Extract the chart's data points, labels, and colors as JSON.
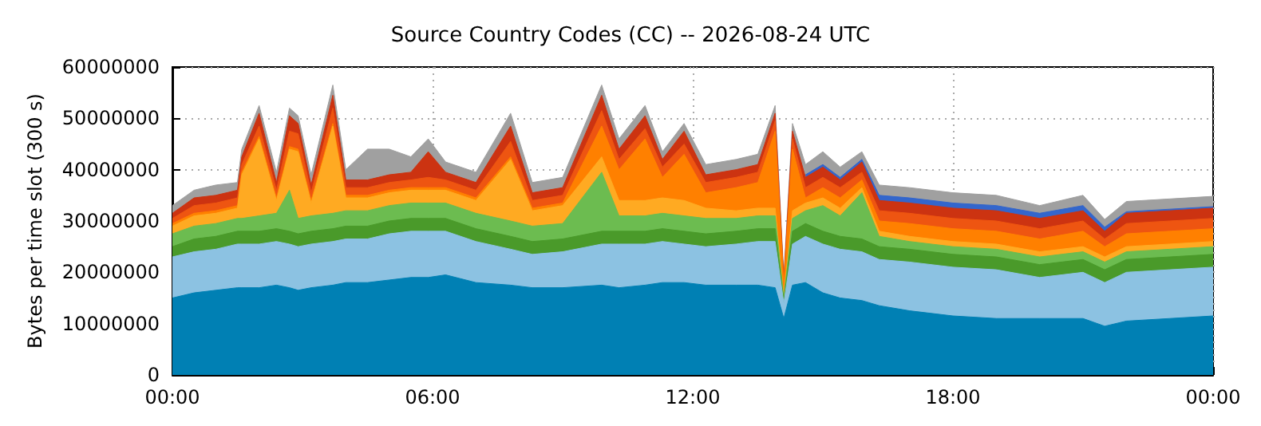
{
  "chart_data": {
    "type": "area",
    "title": "Source Country Codes (CC) -- 2026-08-24 UTC",
    "ylabel": "Bytes per time slot (300 s)",
    "stacked": true,
    "grid": true,
    "marker": "none",
    "x": [
      0,
      0.5,
      1,
      1.5,
      1.6,
      2,
      2.4,
      2.7,
      2.9,
      3.2,
      3.7,
      4,
      4.5,
      5,
      5.5,
      5.9,
      6.3,
      7,
      7.8,
      8.3,
      9,
      9.9,
      10.3,
      10.9,
      11.3,
      11.8,
      12.3,
      13,
      13.5,
      13.9,
      14.1,
      14.3,
      14.6,
      15,
      15.4,
      15.9,
      16.3,
      17,
      18,
      19,
      20,
      21,
      21.5,
      22,
      23,
      24
    ],
    "series": [
      {
        "color": "#0080b4",
        "values": [
          15000000,
          16000000,
          16500000,
          17000000,
          17000000,
          17000000,
          17500000,
          17000000,
          16500000,
          17000000,
          17500000,
          18000000,
          18000000,
          18500000,
          19000000,
          19000000,
          19500000,
          18000000,
          17500000,
          17000000,
          17000000,
          17500000,
          17000000,
          17500000,
          18000000,
          18000000,
          17500000,
          17500000,
          17500000,
          17000000,
          11000000,
          17500000,
          18000000,
          16000000,
          15000000,
          14500000,
          13500000,
          12500000,
          11500000,
          11000000,
          11000000,
          11000000,
          9500000,
          10500000,
          11000000,
          11500000
        ]
      },
      {
        "color": "#8cc2e2",
        "values": [
          8000000,
          8000000,
          8000000,
          8500000,
          8500000,
          8500000,
          8500000,
          8500000,
          8500000,
          8500000,
          8500000,
          8500000,
          8500000,
          9000000,
          9000000,
          9000000,
          8500000,
          8000000,
          7000000,
          6500000,
          7000000,
          8000000,
          8500000,
          8000000,
          8000000,
          7500000,
          7500000,
          8000000,
          8500000,
          9000000,
          3000000,
          8000000,
          9000000,
          9500000,
          9500000,
          9500000,
          9000000,
          9500000,
          9500000,
          9500000,
          8000000,
          9000000,
          8500000,
          9500000,
          9500000,
          9500000
        ]
      },
      {
        "color": "#4a9a2a",
        "values": [
          2000000,
          2500000,
          2500000,
          2500000,
          2500000,
          2500000,
          2500000,
          2500000,
          2500000,
          2500000,
          2500000,
          2500000,
          2500000,
          2500000,
          2500000,
          2500000,
          2500000,
          2500000,
          2500000,
          2500000,
          2500000,
          2500000,
          2500000,
          2500000,
          2500000,
          2500000,
          2500000,
          2500000,
          2500000,
          2500000,
          500000,
          2500000,
          2500000,
          2500000,
          2500000,
          2500000,
          2500000,
          2500000,
          2500000,
          2500000,
          2500000,
          2500000,
          2500000,
          2500000,
          2500000,
          2500000
        ]
      },
      {
        "color": "#6cbc50",
        "values": [
          2500000,
          2500000,
          2500000,
          2500000,
          2500000,
          3000000,
          3000000,
          8000000,
          3000000,
          3000000,
          3000000,
          3000000,
          3000000,
          3000000,
          3000000,
          3000000,
          3000000,
          3000000,
          3000000,
          3000000,
          3000000,
          11500000,
          3000000,
          3000000,
          3000000,
          3000000,
          3000000,
          2500000,
          2500000,
          2500000,
          500000,
          2500000,
          2500000,
          5000000,
          4000000,
          9000000,
          2000000,
          1500000,
          1500000,
          1500000,
          1500000,
          1500000,
          1500000,
          1500000,
          1500000,
          1500000
        ]
      },
      {
        "color": "#ffaa22",
        "values": [
          1500000,
          2000000,
          2000000,
          2000000,
          8500000,
          15000000,
          2500000,
          8000000,
          13000000,
          2500000,
          17000000,
          2500000,
          2500000,
          2500000,
          2500000,
          2500000,
          2500000,
          2500000,
          12000000,
          3000000,
          3500000,
          3000000,
          3000000,
          3000000,
          3000000,
          3000000,
          2000000,
          1500000,
          1500000,
          1500000,
          500000,
          1500000,
          1500000,
          1500000,
          1500000,
          1000000,
          1000000,
          1000000,
          1000000,
          1000000,
          1000000,
          1000000,
          1000000,
          1000000,
          1000000,
          1000000
        ]
      },
      {
        "color": "#ff8000",
        "values": [
          500000,
          500000,
          500000,
          500000,
          500000,
          500000,
          500000,
          500000,
          500000,
          500000,
          500000,
          500000,
          500000,
          500000,
          500000,
          500000,
          500000,
          500000,
          500000,
          500000,
          500000,
          6000000,
          6000000,
          12000000,
          4000000,
          9000000,
          3000000,
          4500000,
          5000000,
          15000000,
          2000000,
          12000000,
          1000000,
          2000000,
          2000000,
          1500000,
          2000000,
          2500000,
          2500000,
          2500000,
          2500000,
          3000000,
          2000000,
          2500000,
          2500000,
          2500000
        ]
      },
      {
        "color": "#ee5511",
        "values": [
          1000000,
          1500000,
          1500000,
          1500000,
          1500000,
          2000000,
          1500000,
          3000000,
          3000000,
          1500000,
          3000000,
          1500000,
          1500000,
          1500000,
          1500000,
          2000000,
          1500000,
          1500000,
          3000000,
          1500000,
          1500000,
          3000000,
          2000000,
          2000000,
          2000000,
          2000000,
          2000000,
          2000000,
          2000000,
          2000000,
          500000,
          2000000,
          2000000,
          2000000,
          2000000,
          1500000,
          2000000,
          2000000,
          2000000,
          2000000,
          2000000,
          2000000,
          1500000,
          2000000,
          2000000,
          2000000
        ]
      },
      {
        "color": "#cc3311",
        "values": [
          1000000,
          1500000,
          1500000,
          1500000,
          1500000,
          2500000,
          1500000,
          3000000,
          2000000,
          1500000,
          2500000,
          1500000,
          1500000,
          1500000,
          1500000,
          5000000,
          1500000,
          1500000,
          3000000,
          1500000,
          1500000,
          3000000,
          2000000,
          2500000,
          1500000,
          2500000,
          1500000,
          1500000,
          1500000,
          1500000,
          500000,
          1500000,
          2000000,
          2000000,
          1500000,
          2000000,
          2000000,
          2000000,
          2000000,
          2000000,
          2000000,
          2000000,
          1500000,
          2000000,
          2000000,
          2000000
        ]
      },
      {
        "color": "#3366cc",
        "values": [
          null,
          null,
          null,
          null,
          null,
          null,
          null,
          null,
          null,
          null,
          null,
          null,
          null,
          null,
          null,
          null,
          null,
          null,
          null,
          null,
          null,
          null,
          null,
          null,
          null,
          null,
          null,
          null,
          null,
          null,
          null,
          null,
          500000,
          500000,
          500000,
          500000,
          1000000,
          1000000,
          1000000,
          1000000,
          1000000,
          1000000,
          800000,
          300000,
          300000,
          300000
        ]
      },
      {
        "color": "#a0a0a0",
        "values": [
          1500000,
          1500000,
          2000000,
          1500000,
          1500000,
          1500000,
          2000000,
          1500000,
          1500000,
          2000000,
          2000000,
          2000000,
          6000000,
          5000000,
          3000000,
          2500000,
          2000000,
          2000000,
          2500000,
          2000000,
          2000000,
          2000000,
          2000000,
          2000000,
          1500000,
          1500000,
          2000000,
          2000000,
          2000000,
          1500000,
          1000000,
          1500000,
          2000000,
          2500000,
          2000000,
          1500000,
          2000000,
          2000000,
          2000000,
          2000000,
          1500000,
          2000000,
          1500000,
          2000000,
          2000000,
          2000000
        ]
      }
    ],
    "xlim": [
      0,
      24
    ],
    "xticks": [
      {
        "value": 0,
        "label": "00:00"
      },
      {
        "value": 6,
        "label": "06:00"
      },
      {
        "value": 12,
        "label": "12:00"
      },
      {
        "value": 18,
        "label": "18:00"
      },
      {
        "value": 24,
        "label": "00:00"
      }
    ],
    "ylim": [
      0,
      60000000
    ],
    "yticks": [
      0,
      10000000,
      20000000,
      30000000,
      40000000,
      50000000,
      60000000
    ]
  }
}
